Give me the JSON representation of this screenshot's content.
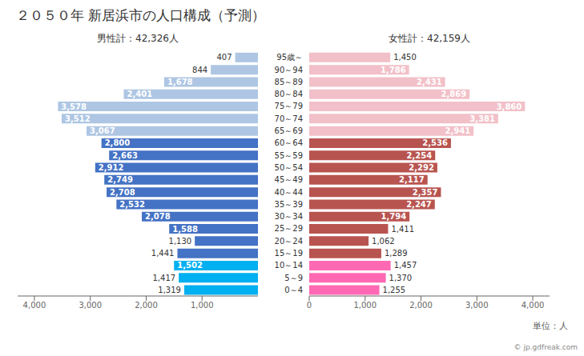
{
  "chart_data": {
    "type": "bar",
    "orientation": "horizontal",
    "title": "２０５０年 新居浜市の人口構成（予測）",
    "annotations": [
      "単位：人",
      "© jp.gdfreak.com"
    ],
    "categories": [
      "95歳～",
      "90～94",
      "85～89",
      "80～84",
      "75～79",
      "70～74",
      "65～69",
      "60～64",
      "55～59",
      "50～54",
      "45～49",
      "40～44",
      "35～39",
      "30～34",
      "25～29",
      "20～24",
      "15～19",
      "10～14",
      "5～9",
      "0～4"
    ],
    "series": [
      {
        "name": "男性計：42,326人",
        "colors": [
          "#aec6e3",
          "#aec6e3",
          "#aec6e3",
          "#aec6e3",
          "#aec6e3",
          "#aec6e3",
          "#aec6e3",
          "#4472c4",
          "#4472c4",
          "#4472c4",
          "#4472c4",
          "#4472c4",
          "#4472c4",
          "#4472c4",
          "#4472c4",
          "#4472c4",
          "#4472c4",
          "#00b0f0",
          "#00b0f0",
          "#00b0f0"
        ],
        "values": [
          407,
          844,
          1678,
          2401,
          3578,
          3512,
          3067,
          2800,
          2663,
          2912,
          2749,
          2708,
          2532,
          2078,
          1588,
          1130,
          1441,
          1502,
          1417,
          1319
        ],
        "value_labels": [
          "407",
          "844",
          "1,678",
          "2,401",
          "3,578",
          "3,512",
          "3,067",
          "2,800",
          "2,663",
          "2,912",
          "2,749",
          "2,708",
          "2,532",
          "2,078",
          "1,588",
          "1,130",
          "1,441",
          "1,502",
          "1,417",
          "1,319"
        ]
      },
      {
        "name": "女性計：42,159人",
        "colors": [
          "#f2c0c8",
          "#f2c0c8",
          "#f2c0c8",
          "#f2c0c8",
          "#f2c0c8",
          "#f2c0c8",
          "#f2c0c8",
          "#b85450",
          "#b85450",
          "#b85450",
          "#b85450",
          "#b85450",
          "#b85450",
          "#b85450",
          "#b85450",
          "#b85450",
          "#b85450",
          "#ff69b4",
          "#ff69b4",
          "#ff69b4"
        ],
        "values": [
          1450,
          1786,
          2431,
          2869,
          3860,
          3381,
          2941,
          2536,
          2254,
          2292,
          2117,
          2357,
          2247,
          1794,
          1411,
          1062,
          1289,
          1457,
          1370,
          1255
        ],
        "value_labels": [
          "1,450",
          "1,786",
          "2,431",
          "2,869",
          "3,860",
          "3,381",
          "2,941",
          "2,536",
          "2,254",
          "2,292",
          "2,117",
          "2,357",
          "2,247",
          "1,794",
          "1,411",
          "1,062",
          "1,289",
          "1,457",
          "1,370",
          "1,255"
        ]
      }
    ],
    "xlim": [
      0,
      4300
    ],
    "xticks": [
      0,
      {
        "value": 1000,
        "label": "1,000"
      },
      {
        "value": 2000,
        "label": "2,000"
      },
      {
        "value": 3000,
        "label": "3,000"
      },
      {
        "value": 4000,
        "label": "4,000"
      }
    ],
    "data_labels": true,
    "grid": false
  }
}
